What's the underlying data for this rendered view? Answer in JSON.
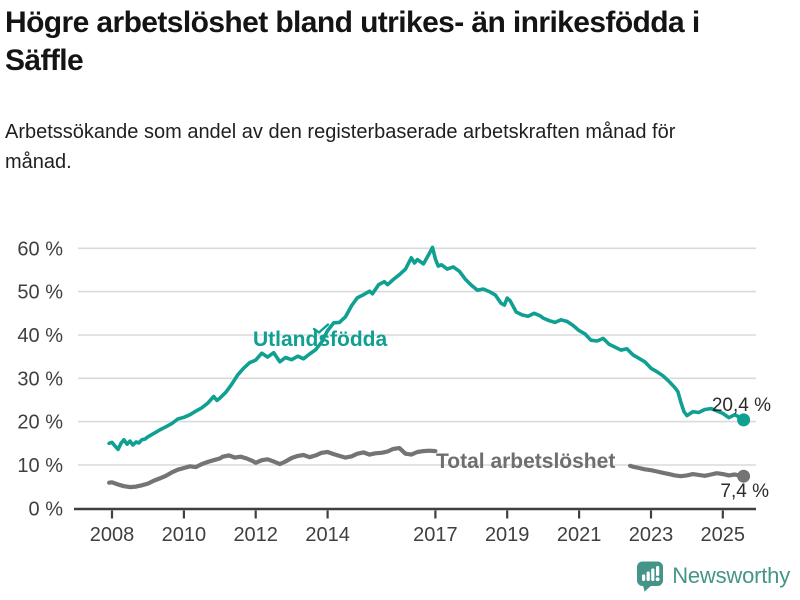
{
  "chart_data": {
    "type": "line",
    "title": "Högre arbetslöshet bland utrikes- än inrikesfödda i Säffle",
    "subtitle": "Arbetssökande som andel av den registerbaserade arbetskraften månad för månad.",
    "grid": true,
    "legend_position": "inline-labels-on-chart",
    "x_axis": {
      "tick_years": [
        2008,
        2010,
        2012,
        2014,
        2017,
        2019,
        2021,
        2023,
        2025
      ],
      "tick_labels": [
        "2008",
        "2010",
        "2012",
        "2014",
        "2017",
        "2019",
        "2021",
        "2023",
        "2025"
      ],
      "range_years": [
        2007.92,
        2026.0
      ]
    },
    "y_axis": {
      "tick_values": [
        0,
        10,
        20,
        30,
        40,
        50,
        60
      ],
      "tick_labels": [
        "0 %",
        "10 %",
        "20 %",
        "30 %",
        "40 %",
        "50 %",
        "60 %"
      ],
      "range": [
        0,
        60
      ],
      "unit": "%"
    },
    "series": [
      {
        "name": "Utlandsfödda",
        "color": "#10a092",
        "end_value_label": "20,4 %",
        "end_value": 20.4,
        "points": [
          [
            2007.92,
            15.0
          ],
          [
            2008.0,
            15.2
          ],
          [
            2008.08,
            14.4
          ],
          [
            2008.17,
            13.6
          ],
          [
            2008.25,
            15.0
          ],
          [
            2008.33,
            15.8
          ],
          [
            2008.42,
            14.8
          ],
          [
            2008.5,
            15.5
          ],
          [
            2008.58,
            14.6
          ],
          [
            2008.67,
            15.3
          ],
          [
            2008.75,
            15.1
          ],
          [
            2008.83,
            15.8
          ],
          [
            2008.92,
            16.0
          ],
          [
            2009.0,
            16.5
          ],
          [
            2009.17,
            17.3
          ],
          [
            2009.33,
            18.1
          ],
          [
            2009.5,
            18.8
          ],
          [
            2009.67,
            19.6
          ],
          [
            2009.83,
            20.6
          ],
          [
            2010.0,
            21.0
          ],
          [
            2010.17,
            21.6
          ],
          [
            2010.33,
            22.4
          ],
          [
            2010.5,
            23.2
          ],
          [
            2010.67,
            24.3
          ],
          [
            2010.83,
            25.8
          ],
          [
            2010.92,
            24.9
          ],
          [
            2011.0,
            25.4
          ],
          [
            2011.17,
            26.8
          ],
          [
            2011.33,
            28.6
          ],
          [
            2011.5,
            30.8
          ],
          [
            2011.67,
            32.4
          ],
          [
            2011.83,
            33.6
          ],
          [
            2012.0,
            34.2
          ],
          [
            2012.17,
            35.8
          ],
          [
            2012.33,
            34.9
          ],
          [
            2012.5,
            35.9
          ],
          [
            2012.67,
            33.8
          ],
          [
            2012.83,
            34.8
          ],
          [
            2013.0,
            34.3
          ],
          [
            2013.17,
            35.1
          ],
          [
            2013.33,
            34.5
          ],
          [
            2013.5,
            35.6
          ],
          [
            2013.67,
            36.6
          ],
          [
            2013.83,
            38.3
          ],
          [
            2014.0,
            41.0
          ],
          [
            2014.17,
            42.8
          ],
          [
            2014.33,
            42.9
          ],
          [
            2014.5,
            44.2
          ],
          [
            2014.67,
            46.8
          ],
          [
            2014.83,
            48.6
          ],
          [
            2015.0,
            49.3
          ],
          [
            2015.17,
            50.1
          ],
          [
            2015.25,
            49.5
          ],
          [
            2015.42,
            51.6
          ],
          [
            2015.58,
            52.3
          ],
          [
            2015.67,
            51.6
          ],
          [
            2015.83,
            52.8
          ],
          [
            2016.0,
            53.9
          ],
          [
            2016.17,
            55.2
          ],
          [
            2016.33,
            57.8
          ],
          [
            2016.42,
            56.6
          ],
          [
            2016.5,
            57.4
          ],
          [
            2016.67,
            56.4
          ],
          [
            2016.83,
            58.8
          ],
          [
            2016.92,
            60.2
          ],
          [
            2017.0,
            57.5
          ],
          [
            2017.08,
            55.9
          ],
          [
            2017.17,
            56.2
          ],
          [
            2017.33,
            55.2
          ],
          [
            2017.5,
            55.7
          ],
          [
            2017.67,
            54.7
          ],
          [
            2017.83,
            52.9
          ],
          [
            2018.0,
            51.5
          ],
          [
            2018.17,
            50.3
          ],
          [
            2018.33,
            50.6
          ],
          [
            2018.5,
            50.0
          ],
          [
            2018.67,
            49.2
          ],
          [
            2018.83,
            47.3
          ],
          [
            2018.92,
            46.9
          ],
          [
            2019.0,
            48.5
          ],
          [
            2019.08,
            47.9
          ],
          [
            2019.25,
            45.3
          ],
          [
            2019.42,
            44.6
          ],
          [
            2019.58,
            44.3
          ],
          [
            2019.75,
            45.0
          ],
          [
            2019.92,
            44.4
          ],
          [
            2020.0,
            43.9
          ],
          [
            2020.17,
            43.3
          ],
          [
            2020.33,
            42.9
          ],
          [
            2020.5,
            43.5
          ],
          [
            2020.67,
            43.1
          ],
          [
            2020.83,
            42.2
          ],
          [
            2021.0,
            41.0
          ],
          [
            2021.17,
            40.2
          ],
          [
            2021.33,
            38.8
          ],
          [
            2021.5,
            38.6
          ],
          [
            2021.67,
            39.2
          ],
          [
            2021.83,
            37.9
          ],
          [
            2022.0,
            37.2
          ],
          [
            2022.17,
            36.5
          ],
          [
            2022.33,
            36.8
          ],
          [
            2022.5,
            35.4
          ],
          [
            2022.67,
            34.6
          ],
          [
            2022.83,
            33.8
          ],
          [
            2023.0,
            32.3
          ],
          [
            2023.17,
            31.5
          ],
          [
            2023.33,
            30.6
          ],
          [
            2023.5,
            29.3
          ],
          [
            2023.67,
            27.8
          ],
          [
            2023.75,
            26.9
          ],
          [
            2023.83,
            24.5
          ],
          [
            2023.92,
            22.3
          ],
          [
            2024.0,
            21.4
          ],
          [
            2024.17,
            22.3
          ],
          [
            2024.33,
            22.1
          ],
          [
            2024.5,
            22.8
          ],
          [
            2024.67,
            23.0
          ],
          [
            2024.83,
            22.5
          ],
          [
            2025.0,
            21.9
          ],
          [
            2025.17,
            20.9
          ],
          [
            2025.33,
            21.6
          ],
          [
            2025.42,
            21.2
          ],
          [
            2025.5,
            20.7
          ],
          [
            2025.58,
            20.4
          ]
        ]
      },
      {
        "name": "Total arbetslöshet",
        "color": "#747474",
        "end_value_label": "7,4 %",
        "end_value": 7.4,
        "hidden_by_label_range_years": [
          2017.05,
          2022.42
        ],
        "points": [
          [
            2007.92,
            5.9
          ],
          [
            2008.0,
            6.0
          ],
          [
            2008.17,
            5.5
          ],
          [
            2008.33,
            5.1
          ],
          [
            2008.5,
            4.9
          ],
          [
            2008.67,
            5.0
          ],
          [
            2008.83,
            5.3
          ],
          [
            2009.0,
            5.7
          ],
          [
            2009.17,
            6.4
          ],
          [
            2009.33,
            6.9
          ],
          [
            2009.5,
            7.5
          ],
          [
            2009.67,
            8.3
          ],
          [
            2009.83,
            8.9
          ],
          [
            2010.0,
            9.3
          ],
          [
            2010.17,
            9.7
          ],
          [
            2010.33,
            9.5
          ],
          [
            2010.5,
            10.2
          ],
          [
            2010.67,
            10.7
          ],
          [
            2010.83,
            11.1
          ],
          [
            2011.0,
            11.5
          ],
          [
            2011.08,
            11.9
          ],
          [
            2011.25,
            12.2
          ],
          [
            2011.42,
            11.7
          ],
          [
            2011.58,
            11.9
          ],
          [
            2011.75,
            11.5
          ],
          [
            2011.92,
            10.9
          ],
          [
            2012.0,
            10.5
          ],
          [
            2012.17,
            11.1
          ],
          [
            2012.33,
            11.3
          ],
          [
            2012.5,
            10.8
          ],
          [
            2012.67,
            10.2
          ],
          [
            2012.83,
            10.8
          ],
          [
            2013.0,
            11.6
          ],
          [
            2013.17,
            12.1
          ],
          [
            2013.33,
            12.3
          ],
          [
            2013.5,
            11.8
          ],
          [
            2013.67,
            12.2
          ],
          [
            2013.83,
            12.8
          ],
          [
            2014.0,
            13.0
          ],
          [
            2014.17,
            12.5
          ],
          [
            2014.33,
            12.1
          ],
          [
            2014.5,
            11.7
          ],
          [
            2014.67,
            12.0
          ],
          [
            2014.83,
            12.6
          ],
          [
            2015.0,
            12.9
          ],
          [
            2015.17,
            12.4
          ],
          [
            2015.33,
            12.7
          ],
          [
            2015.5,
            12.8
          ],
          [
            2015.67,
            13.1
          ],
          [
            2015.83,
            13.7
          ],
          [
            2016.0,
            13.9
          ],
          [
            2016.17,
            12.6
          ],
          [
            2016.33,
            12.4
          ],
          [
            2016.5,
            13.0
          ],
          [
            2016.67,
            13.2
          ],
          [
            2016.83,
            13.3
          ],
          [
            2017.0,
            13.2
          ],
          [
            2017.25,
            12.8
          ],
          [
            2017.5,
            12.4
          ],
          [
            2017.75,
            12.1
          ],
          [
            2018.0,
            11.8
          ],
          [
            2018.25,
            11.3
          ],
          [
            2018.5,
            11.0
          ],
          [
            2018.75,
            10.8
          ],
          [
            2019.0,
            10.6
          ],
          [
            2019.25,
            10.4
          ],
          [
            2019.5,
            10.5
          ],
          [
            2019.75,
            10.7
          ],
          [
            2020.0,
            10.9
          ],
          [
            2020.25,
            11.8
          ],
          [
            2020.5,
            12.0
          ],
          [
            2020.75,
            11.6
          ],
          [
            2021.0,
            11.2
          ],
          [
            2021.25,
            10.8
          ],
          [
            2021.5,
            10.4
          ],
          [
            2021.75,
            10.1
          ],
          [
            2022.0,
            9.9
          ],
          [
            2022.25,
            9.8
          ],
          [
            2022.42,
            9.8
          ],
          [
            2022.5,
            9.6
          ],
          [
            2022.67,
            9.3
          ],
          [
            2022.83,
            9.0
          ],
          [
            2023.0,
            8.8
          ],
          [
            2023.17,
            8.5
          ],
          [
            2023.33,
            8.2
          ],
          [
            2023.5,
            7.9
          ],
          [
            2023.67,
            7.6
          ],
          [
            2023.83,
            7.4
          ],
          [
            2024.0,
            7.6
          ],
          [
            2024.17,
            7.9
          ],
          [
            2024.33,
            7.7
          ],
          [
            2024.5,
            7.5
          ],
          [
            2024.67,
            7.8
          ],
          [
            2024.83,
            8.1
          ],
          [
            2025.0,
            7.9
          ],
          [
            2025.17,
            7.6
          ],
          [
            2025.33,
            7.8
          ],
          [
            2025.5,
            7.5
          ],
          [
            2025.58,
            7.4
          ]
        ]
      }
    ]
  },
  "branding": {
    "name": "Newsworthy",
    "color": "#45948a",
    "icon": "speech-bubble-bar-chart-icon"
  }
}
